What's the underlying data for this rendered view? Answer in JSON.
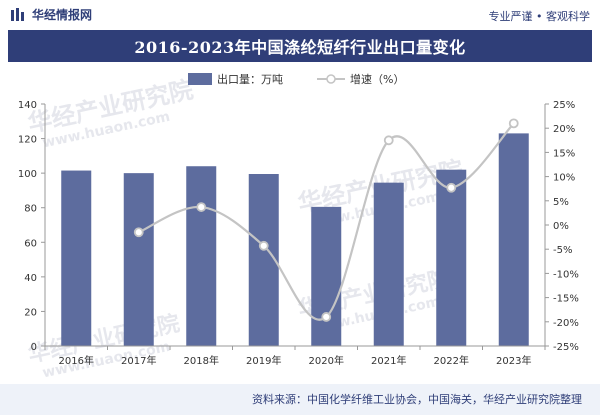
{
  "header": {
    "brand": "华经情报网",
    "tagline": "专业严谨 • 客观科学",
    "title": "2016-2023年中国涤纶短纤行业出口量变化"
  },
  "footer": {
    "source": "资料来源：中国化学纤维工业协会，中国海关，华经产业研究院整理"
  },
  "watermark": {
    "text": "华经产业研究院",
    "url": "www.huaon.com"
  },
  "colors": {
    "bar": "#5d6c9e",
    "line": "#c4c4c4",
    "title_bg": "#2f3e78"
  },
  "chart_data": {
    "type": "bar",
    "categories": [
      "2016年",
      "2017年",
      "2018年",
      "2019年",
      "2020年",
      "2021年",
      "2022年",
      "2023年"
    ],
    "series": [
      {
        "name": "出口量：万吨",
        "type": "bar",
        "axis": "left",
        "values": [
          101.5,
          100,
          104,
          99.5,
          80.5,
          94.5,
          102,
          123
        ]
      },
      {
        "name": "增速（%）",
        "type": "line",
        "axis": "right",
        "values": [
          null,
          -1.5,
          3.7,
          -4.3,
          -19.0,
          17.5,
          7.7,
          21.0
        ]
      }
    ],
    "y_left": {
      "min": 0,
      "max": 140,
      "ticks": [
        0,
        20,
        40,
        60,
        80,
        100,
        120,
        140
      ]
    },
    "y_right": {
      "min": -25,
      "max": 25,
      "ticks": [
        -25,
        -20,
        -15,
        -10,
        -5,
        0,
        5,
        10,
        15,
        20,
        25
      ],
      "tick_labels": [
        "-25%",
        "-20%",
        "-15%",
        "-10%",
        "-5%",
        "0%",
        "5%",
        "10%",
        "15%",
        "20%",
        "25%"
      ]
    },
    "legend_position": "top-center",
    "grid": false
  }
}
